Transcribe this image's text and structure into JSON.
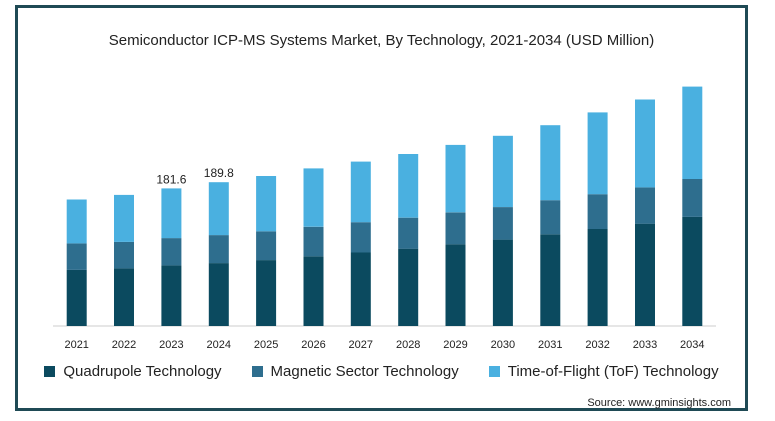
{
  "chart_data": {
    "type": "bar",
    "stacked": true,
    "title": "Semiconductor ICP-MS Systems Market, By Technology, 2021-2034 (USD Million)",
    "xlabel": "",
    "ylabel": "",
    "ylim": [
      0,
      330
    ],
    "grid": false,
    "legend_position": "bottom",
    "categories": [
      "2021",
      "2022",
      "2023",
      "2024",
      "2025",
      "2026",
      "2027",
      "2028",
      "2029",
      "2030",
      "2031",
      "2032",
      "2033",
      "2034"
    ],
    "series": [
      {
        "name": "Quadrupole Technology",
        "color": "#0b4a5f",
        "values": [
          74,
          76,
          80,
          83,
          87,
          92,
          97,
          102,
          108,
          114,
          121,
          128,
          135,
          144
        ]
      },
      {
        "name": "Magnetic Sector Technology",
        "color": "#2e6e8e",
        "values": [
          35,
          35,
          36,
          37,
          38,
          39,
          40,
          41,
          42,
          43,
          45,
          46,
          48,
          50
        ]
      },
      {
        "name": "Time-of-Flight (ToF) Technology",
        "color": "#4ab0e0",
        "values": [
          58,
          62,
          65.6,
          69.8,
          73,
          77,
          80,
          84,
          89,
          94,
          99,
          108,
          116,
          122
        ]
      }
    ],
    "data_labels": {
      "2023": "181.6",
      "2024": "189.8"
    }
  },
  "source": "Source: www.gminsights.com"
}
